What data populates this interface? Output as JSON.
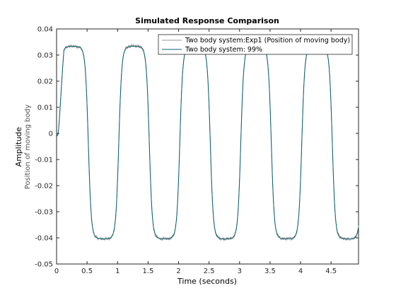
{
  "chart_data": {
    "type": "line",
    "title": "Simulated Response Comparison",
    "xlabel": "Time (seconds)",
    "ylabel": "Amplitude",
    "ylabel_sub": "Position of moving body",
    "xlim": [
      0,
      4.95
    ],
    "ylim": [
      -0.05,
      0.04
    ],
    "xticks": [
      "0",
      "0.5",
      "1",
      "1.5",
      "2",
      "2.5",
      "3",
      "3.5",
      "4",
      "4.5"
    ],
    "xtick_values": [
      0,
      0.5,
      1,
      1.5,
      2,
      2.5,
      3,
      3.5,
      4,
      4.5
    ],
    "yticks": [
      "0.04",
      "0.03",
      "0.02",
      "0.01",
      "0",
      "-0.01",
      "-0.02",
      "-0.03",
      "-0.04",
      "-0.05"
    ],
    "ytick_values": [
      0.04,
      0.03,
      0.02,
      0.01,
      0,
      -0.01,
      -0.02,
      -0.03,
      -0.04,
      -0.05
    ],
    "grid": false,
    "legend_position": "top-right",
    "series": [
      {
        "name": "Two body system:Exp1 (Position of moving body)",
        "color": "#9a9a9a",
        "period": 1.0,
        "upper": 0.0335,
        "lower": -0.0405,
        "noise": 0.0006
      },
      {
        "name": "Two body system:  99%",
        "color": "#0b5f73",
        "period": 1.0,
        "upper": 0.0335,
        "lower": -0.0405,
        "noise": 0.0
      }
    ]
  }
}
